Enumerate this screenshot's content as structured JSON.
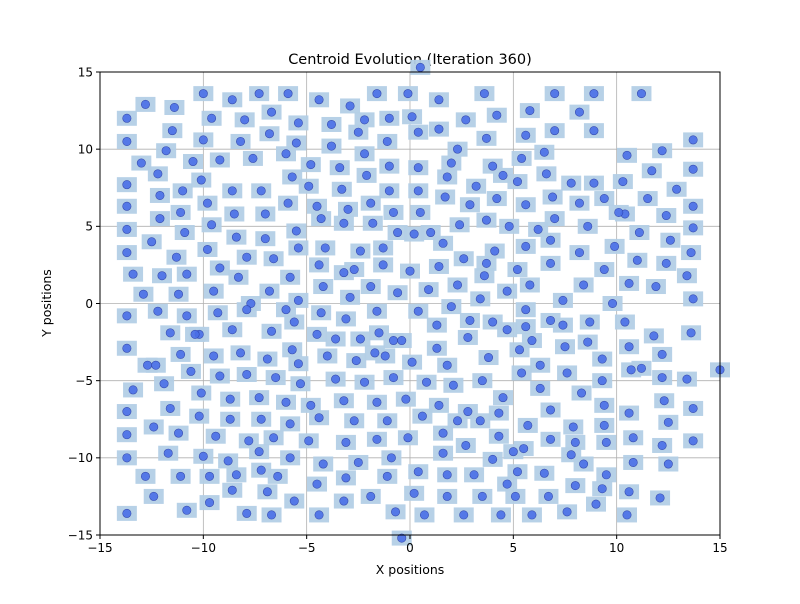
{
  "chart_data": {
    "type": "scatter",
    "title": "Centroid Evolution (Iteration 360)",
    "xlabel": "X positions",
    "ylabel": "Y positions",
    "xlim": [
      -15,
      15
    ],
    "ylim": [
      -15,
      15
    ],
    "xticks": [
      -15,
      -10,
      -5,
      0,
      5,
      10,
      15
    ],
    "yticks": [
      -15,
      -10,
      -5,
      0,
      5,
      10,
      15
    ],
    "xtick_labels": [
      "−15",
      "−10",
      "−5",
      "0",
      "5",
      "10",
      "15"
    ],
    "ytick_labels": [
      "−15",
      "−10",
      "−5",
      "0",
      "5",
      "10",
      "15"
    ],
    "grid": true,
    "legend": "none",
    "colors": {
      "point": "#4a6fe8",
      "point_edge": "#2a3ea8",
      "box": "#b3cfe6",
      "grid": "#b0b0b0",
      "axes": "#000000"
    },
    "points": [
      [
        0.5,
        15.3
      ],
      [
        -13.7,
        12.0
      ],
      [
        -12.8,
        12.9
      ],
      [
        -11.4,
        12.7
      ],
      [
        -10.0,
        13.6
      ],
      [
        -8.6,
        13.2
      ],
      [
        -7.3,
        13.6
      ],
      [
        -5.9,
        13.6
      ],
      [
        -4.4,
        13.2
      ],
      [
        -2.9,
        12.8
      ],
      [
        -1.6,
        13.6
      ],
      [
        -0.1,
        13.6
      ],
      [
        1.4,
        13.2
      ],
      [
        3.6,
        13.6
      ],
      [
        5.8,
        12.5
      ],
      [
        7.0,
        13.6
      ],
      [
        8.2,
        12.4
      ],
      [
        8.9,
        13.6
      ],
      [
        11.2,
        13.6
      ],
      [
        -9.6,
        12.0
      ],
      [
        -8.0,
        11.9
      ],
      [
        -6.7,
        12.4
      ],
      [
        -5.4,
        11.7
      ],
      [
        -3.8,
        11.6
      ],
      [
        -2.2,
        11.9
      ],
      [
        -1.0,
        12.0
      ],
      [
        0.1,
        12.1
      ],
      [
        2.7,
        11.9
      ],
      [
        4.2,
        12.2
      ],
      [
        -13.7,
        10.5
      ],
      [
        -11.5,
        11.2
      ],
      [
        -10.0,
        10.6
      ],
      [
        -8.2,
        10.5
      ],
      [
        -6.8,
        11.0
      ],
      [
        -5.5,
        10.4
      ],
      [
        -3.8,
        10.2
      ],
      [
        -2.5,
        11.1
      ],
      [
        -1.1,
        10.5
      ],
      [
        0.4,
        11.1
      ],
      [
        1.4,
        11.3
      ],
      [
        2.3,
        10.0
      ],
      [
        3.7,
        10.7
      ],
      [
        5.6,
        10.9
      ],
      [
        7.0,
        11.2
      ],
      [
        8.9,
        11.2
      ],
      [
        -13.0,
        9.1
      ],
      [
        -11.8,
        9.9
      ],
      [
        -10.5,
        9.2
      ],
      [
        -9.2,
        9.3
      ],
      [
        -7.6,
        9.4
      ],
      [
        -6.0,
        9.7
      ],
      [
        -4.8,
        9.0
      ],
      [
        -3.4,
        8.8
      ],
      [
        -2.2,
        9.7
      ],
      [
        -1.0,
        8.9
      ],
      [
        0.4,
        8.8
      ],
      [
        2.0,
        9.1
      ],
      [
        4.0,
        8.9
      ],
      [
        5.4,
        9.4
      ],
      [
        6.5,
        9.8
      ],
      [
        10.5,
        9.6
      ],
      [
        12.2,
        9.9
      ],
      [
        13.7,
        10.6
      ],
      [
        -13.7,
        7.7
      ],
      [
        -12.2,
        8.4
      ],
      [
        -11.0,
        7.3
      ],
      [
        -10.1,
        8.0
      ],
      [
        -8.6,
        7.3
      ],
      [
        -7.2,
        7.3
      ],
      [
        -5.7,
        8.2
      ],
      [
        -4.9,
        7.6
      ],
      [
        -3.3,
        7.4
      ],
      [
        -2.1,
        8.3
      ],
      [
        -1.0,
        7.3
      ],
      [
        0.4,
        7.3
      ],
      [
        1.8,
        8.2
      ],
      [
        3.2,
        7.6
      ],
      [
        4.5,
        8.3
      ],
      [
        5.2,
        7.9
      ],
      [
        6.6,
        8.4
      ],
      [
        7.8,
        7.8
      ],
      [
        8.9,
        7.8
      ],
      [
        10.3,
        7.9
      ],
      [
        11.7,
        8.6
      ],
      [
        12.9,
        7.4
      ],
      [
        13.7,
        8.7
      ],
      [
        -13.7,
        6.3
      ],
      [
        -12.1,
        7.0
      ],
      [
        -11.1,
        5.9
      ],
      [
        -9.8,
        6.5
      ],
      [
        -8.5,
        5.8
      ],
      [
        -7.0,
        5.8
      ],
      [
        -5.9,
        6.5
      ],
      [
        -4.5,
        6.3
      ],
      [
        -3.0,
        6.1
      ],
      [
        -1.9,
        6.5
      ],
      [
        -0.8,
        5.9
      ],
      [
        0.5,
        5.9
      ],
      [
        1.7,
        6.9
      ],
      [
        2.9,
        6.4
      ],
      [
        4.2,
        6.8
      ],
      [
        5.6,
        6.4
      ],
      [
        6.9,
        6.9
      ],
      [
        8.2,
        6.5
      ],
      [
        9.4,
        6.8
      ],
      [
        10.4,
        5.8
      ],
      [
        11.5,
        6.8
      ],
      [
        12.4,
        5.7
      ],
      [
        13.7,
        6.3
      ],
      [
        -13.7,
        4.8
      ],
      [
        -12.1,
        5.5
      ],
      [
        -10.9,
        4.6
      ],
      [
        -9.6,
        5.1
      ],
      [
        -8.4,
        4.3
      ],
      [
        -7.0,
        4.2
      ],
      [
        -5.5,
        4.7
      ],
      [
        -4.3,
        5.5
      ],
      [
        -3.2,
        5.2
      ],
      [
        -1.8,
        5.2
      ],
      [
        -0.6,
        4.6
      ],
      [
        1.0,
        4.6
      ],
      [
        2.4,
        5.1
      ],
      [
        3.7,
        5.4
      ],
      [
        4.8,
        5.0
      ],
      [
        6.2,
        4.8
      ],
      [
        7.0,
        5.5
      ],
      [
        8.6,
        5.0
      ],
      [
        10.1,
        5.9
      ],
      [
        11.1,
        4.6
      ],
      [
        12.6,
        4.1
      ],
      [
        13.7,
        4.9
      ],
      [
        -13.7,
        3.3
      ],
      [
        -12.5,
        4.0
      ],
      [
        -11.3,
        3.0
      ],
      [
        -9.8,
        3.5
      ],
      [
        -9.2,
        2.3
      ],
      [
        -7.9,
        3.0
      ],
      [
        -6.6,
        2.9
      ],
      [
        -5.4,
        3.6
      ],
      [
        -4.1,
        3.6
      ],
      [
        -3.2,
        2.0
      ],
      [
        -2.4,
        3.4
      ],
      [
        -1.3,
        3.6
      ],
      [
        0.2,
        4.5
      ],
      [
        1.6,
        3.9
      ],
      [
        2.6,
        2.9
      ],
      [
        3.7,
        2.6
      ],
      [
        4.1,
        3.4
      ],
      [
        5.6,
        3.7
      ],
      [
        6.8,
        4.1
      ],
      [
        8.2,
        3.3
      ],
      [
        9.4,
        2.2
      ],
      [
        9.9,
        3.7
      ],
      [
        11.0,
        2.8
      ],
      [
        12.4,
        2.6
      ],
      [
        13.6,
        3.3
      ],
      [
        -13.4,
        1.9
      ],
      [
        -12.9,
        0.6
      ],
      [
        -12.0,
        1.8
      ],
      [
        -11.2,
        0.6
      ],
      [
        -10.8,
        1.9
      ],
      [
        -9.5,
        0.8
      ],
      [
        -8.3,
        1.7
      ],
      [
        -7.7,
        0.0
      ],
      [
        -6.8,
        0.8
      ],
      [
        -5.8,
        1.7
      ],
      [
        -5.4,
        0.2
      ],
      [
        -4.4,
        2.5
      ],
      [
        -4.2,
        1.1
      ],
      [
        -2.9,
        0.4
      ],
      [
        -2.7,
        2.2
      ],
      [
        -1.9,
        1.1
      ],
      [
        -1.3,
        2.5
      ],
      [
        -0.6,
        0.7
      ],
      [
        0.0,
        2.1
      ],
      [
        0.9,
        0.9
      ],
      [
        1.4,
        2.4
      ],
      [
        2.0,
        -0.2
      ],
      [
        2.3,
        1.2
      ],
      [
        3.4,
        0.3
      ],
      [
        3.6,
        1.8
      ],
      [
        4.7,
        0.8
      ],
      [
        5.2,
        2.2
      ],
      [
        5.6,
        -0.4
      ],
      [
        5.8,
        1.2
      ],
      [
        6.8,
        2.6
      ],
      [
        7.4,
        0.2
      ],
      [
        8.4,
        1.2
      ],
      [
        9.8,
        0.0
      ],
      [
        10.6,
        1.3
      ],
      [
        11.9,
        1.1
      ],
      [
        13.4,
        1.8
      ],
      [
        13.7,
        0.3
      ],
      [
        -13.7,
        -0.8
      ],
      [
        -12.2,
        -0.5
      ],
      [
        -11.6,
        -1.9
      ],
      [
        -10.8,
        -0.8
      ],
      [
        -10.2,
        -2.0
      ],
      [
        -9.3,
        -0.6
      ],
      [
        -8.6,
        -1.7
      ],
      [
        -7.9,
        -0.4
      ],
      [
        -6.7,
        -1.8
      ],
      [
        -6.0,
        -0.4
      ],
      [
        -5.6,
        -1.2
      ],
      [
        -4.3,
        -0.6
      ],
      [
        -4.5,
        -2.0
      ],
      [
        -3.1,
        -1.0
      ],
      [
        -2.4,
        -2.3
      ],
      [
        -1.6,
        -0.5
      ],
      [
        -1.5,
        -1.9
      ],
      [
        -0.8,
        -2.4
      ],
      [
        0.4,
        -0.5
      ],
      [
        1.3,
        -1.4
      ],
      [
        2.9,
        -1.1
      ],
      [
        4.0,
        -1.2
      ],
      [
        4.7,
        -1.7
      ],
      [
        5.6,
        -1.5
      ],
      [
        6.8,
        -1.1
      ],
      [
        7.4,
        -1.4
      ],
      [
        8.7,
        -1.2
      ],
      [
        10.4,
        -1.2
      ],
      [
        11.8,
        -2.1
      ],
      [
        13.6,
        -1.9
      ],
      [
        -13.7,
        -2.9
      ],
      [
        -12.3,
        -4.0
      ],
      [
        -11.1,
        -3.3
      ],
      [
        -10.4,
        -2.0
      ],
      [
        -9.5,
        -3.4
      ],
      [
        -8.2,
        -3.2
      ],
      [
        -6.9,
        -3.6
      ],
      [
        -5.7,
        -3.0
      ],
      [
        -5.4,
        -3.9
      ],
      [
        -4.0,
        -3.4
      ],
      [
        -3.6,
        -2.3
      ],
      [
        -2.6,
        -3.7
      ],
      [
        -1.7,
        -3.2
      ],
      [
        -1.2,
        -3.4
      ],
      [
        -0.4,
        -2.4
      ],
      [
        0.1,
        -3.8
      ],
      [
        1.3,
        -2.9
      ],
      [
        1.8,
        -4.0
      ],
      [
        2.8,
        -2.2
      ],
      [
        3.8,
        -3.5
      ],
      [
        5.3,
        -3.0
      ],
      [
        5.9,
        -2.4
      ],
      [
        6.3,
        -4.0
      ],
      [
        7.5,
        -2.8
      ],
      [
        8.6,
        -2.5
      ],
      [
        9.3,
        -3.6
      ],
      [
        10.6,
        -2.8
      ],
      [
        11.2,
        -4.2
      ],
      [
        12.2,
        -3.3
      ],
      [
        13.4,
        -4.9
      ],
      [
        15.0,
        -4.3
      ],
      [
        -13.4,
        -5.6
      ],
      [
        -12.7,
        -4.0
      ],
      [
        -11.9,
        -5.2
      ],
      [
        -11.6,
        -6.8
      ],
      [
        -10.6,
        -4.4
      ],
      [
        -10.1,
        -5.8
      ],
      [
        -9.2,
        -4.7
      ],
      [
        -8.7,
        -6.2
      ],
      [
        -7.9,
        -4.6
      ],
      [
        -7.3,
        -6.1
      ],
      [
        -6.5,
        -4.8
      ],
      [
        -6.0,
        -6.4
      ],
      [
        -5.3,
        -5.2
      ],
      [
        -4.8,
        -6.6
      ],
      [
        -3.6,
        -4.9
      ],
      [
        -3.2,
        -6.3
      ],
      [
        -2.2,
        -5.1
      ],
      [
        -1.6,
        -6.4
      ],
      [
        -0.8,
        -4.8
      ],
      [
        -0.2,
        -6.2
      ],
      [
        0.8,
        -5.1
      ],
      [
        1.4,
        -6.6
      ],
      [
        2.1,
        -5.3
      ],
      [
        2.8,
        -7.0
      ],
      [
        3.5,
        -5.0
      ],
      [
        4.5,
        -6.1
      ],
      [
        5.4,
        -4.5
      ],
      [
        6.3,
        -5.5
      ],
      [
        6.8,
        -6.9
      ],
      [
        7.6,
        -4.5
      ],
      [
        8.3,
        -5.8
      ],
      [
        9.3,
        -5.0
      ],
      [
        9.4,
        -6.6
      ],
      [
        10.7,
        -4.3
      ],
      [
        10.6,
        -7.1
      ],
      [
        12.2,
        -4.8
      ],
      [
        12.3,
        -6.3
      ],
      [
        13.7,
        -6.8
      ],
      [
        -13.7,
        -7.0
      ],
      [
        -13.7,
        -8.5
      ],
      [
        -12.4,
        -8.0
      ],
      [
        -11.2,
        -8.4
      ],
      [
        -10.2,
        -7.3
      ],
      [
        -9.4,
        -8.6
      ],
      [
        -8.7,
        -7.5
      ],
      [
        -7.8,
        -8.9
      ],
      [
        -7.2,
        -7.5
      ],
      [
        -6.6,
        -8.7
      ],
      [
        -5.8,
        -7.8
      ],
      [
        -4.9,
        -8.9
      ],
      [
        -4.4,
        -7.4
      ],
      [
        -3.1,
        -9.0
      ],
      [
        -2.7,
        -7.6
      ],
      [
        -1.6,
        -8.8
      ],
      [
        -1.1,
        -7.6
      ],
      [
        -0.1,
        -8.7
      ],
      [
        0.6,
        -7.3
      ],
      [
        1.6,
        -8.4
      ],
      [
        2.3,
        -7.6
      ],
      [
        2.7,
        -9.2
      ],
      [
        3.4,
        -7.6
      ],
      [
        4.3,
        -8.6
      ],
      [
        4.3,
        -7.1
      ],
      [
        5.5,
        -9.4
      ],
      [
        5.7,
        -7.9
      ],
      [
        6.8,
        -8.8
      ],
      [
        7.9,
        -8.0
      ],
      [
        8.0,
        -9.0
      ],
      [
        9.4,
        -7.9
      ],
      [
        9.5,
        -9.0
      ],
      [
        10.8,
        -8.7
      ],
      [
        12.2,
        -9.2
      ],
      [
        12.5,
        -7.7
      ],
      [
        13.7,
        -8.9
      ],
      [
        -13.7,
        -10.0
      ],
      [
        -12.8,
        -11.2
      ],
      [
        -11.7,
        -9.7
      ],
      [
        -11.1,
        -11.2
      ],
      [
        -10.0,
        -9.9
      ],
      [
        -9.7,
        -11.2
      ],
      [
        -8.8,
        -10.2
      ],
      [
        -8.4,
        -11.1
      ],
      [
        -7.2,
        -10.8
      ],
      [
        -7.3,
        -9.6
      ],
      [
        -6.4,
        -11.2
      ],
      [
        -5.8,
        -10.0
      ],
      [
        -4.5,
        -11.7
      ],
      [
        -4.2,
        -10.4
      ],
      [
        -3.1,
        -11.3
      ],
      [
        -2.5,
        -10.3
      ],
      [
        -1.1,
        -11.2
      ],
      [
        -0.9,
        -10.0
      ],
      [
        0.4,
        -10.9
      ],
      [
        1.8,
        -11.1
      ],
      [
        1.6,
        -9.7
      ],
      [
        3.1,
        -11.1
      ],
      [
        4.0,
        -10.1
      ],
      [
        4.7,
        -11.7
      ],
      [
        5.0,
        -9.6
      ],
      [
        5.2,
        -10.9
      ],
      [
        6.5,
        -11.0
      ],
      [
        7.8,
        -9.8
      ],
      [
        8.4,
        -10.4
      ],
      [
        9.5,
        -11.1
      ],
      [
        10.8,
        -10.3
      ],
      [
        12.5,
        -10.4
      ],
      [
        -13.7,
        -13.6
      ],
      [
        -12.4,
        -12.5
      ],
      [
        -10.8,
        -13.4
      ],
      [
        -9.7,
        -12.9
      ],
      [
        -8.6,
        -12.1
      ],
      [
        -7.9,
        -13.6
      ],
      [
        -6.9,
        -12.2
      ],
      [
        -6.7,
        -13.7
      ],
      [
        -5.6,
        -12.8
      ],
      [
        -4.4,
        -13.7
      ],
      [
        -3.2,
        -12.8
      ],
      [
        -1.9,
        -12.5
      ],
      [
        -0.7,
        -13.5
      ],
      [
        0.2,
        -12.3
      ],
      [
        0.7,
        -13.7
      ],
      [
        1.8,
        -12.5
      ],
      [
        2.6,
        -13.7
      ],
      [
        3.5,
        -12.5
      ],
      [
        4.4,
        -13.7
      ],
      [
        5.1,
        -12.5
      ],
      [
        5.9,
        -13.7
      ],
      [
        6.7,
        -12.5
      ],
      [
        7.6,
        -13.5
      ],
      [
        8.0,
        -11.8
      ],
      [
        9.0,
        -13.0
      ],
      [
        9.3,
        -12.0
      ],
      [
        10.5,
        -13.7
      ],
      [
        10.6,
        -12.2
      ],
      [
        12.1,
        -12.6
      ],
      [
        -0.4,
        -15.2
      ]
    ]
  }
}
